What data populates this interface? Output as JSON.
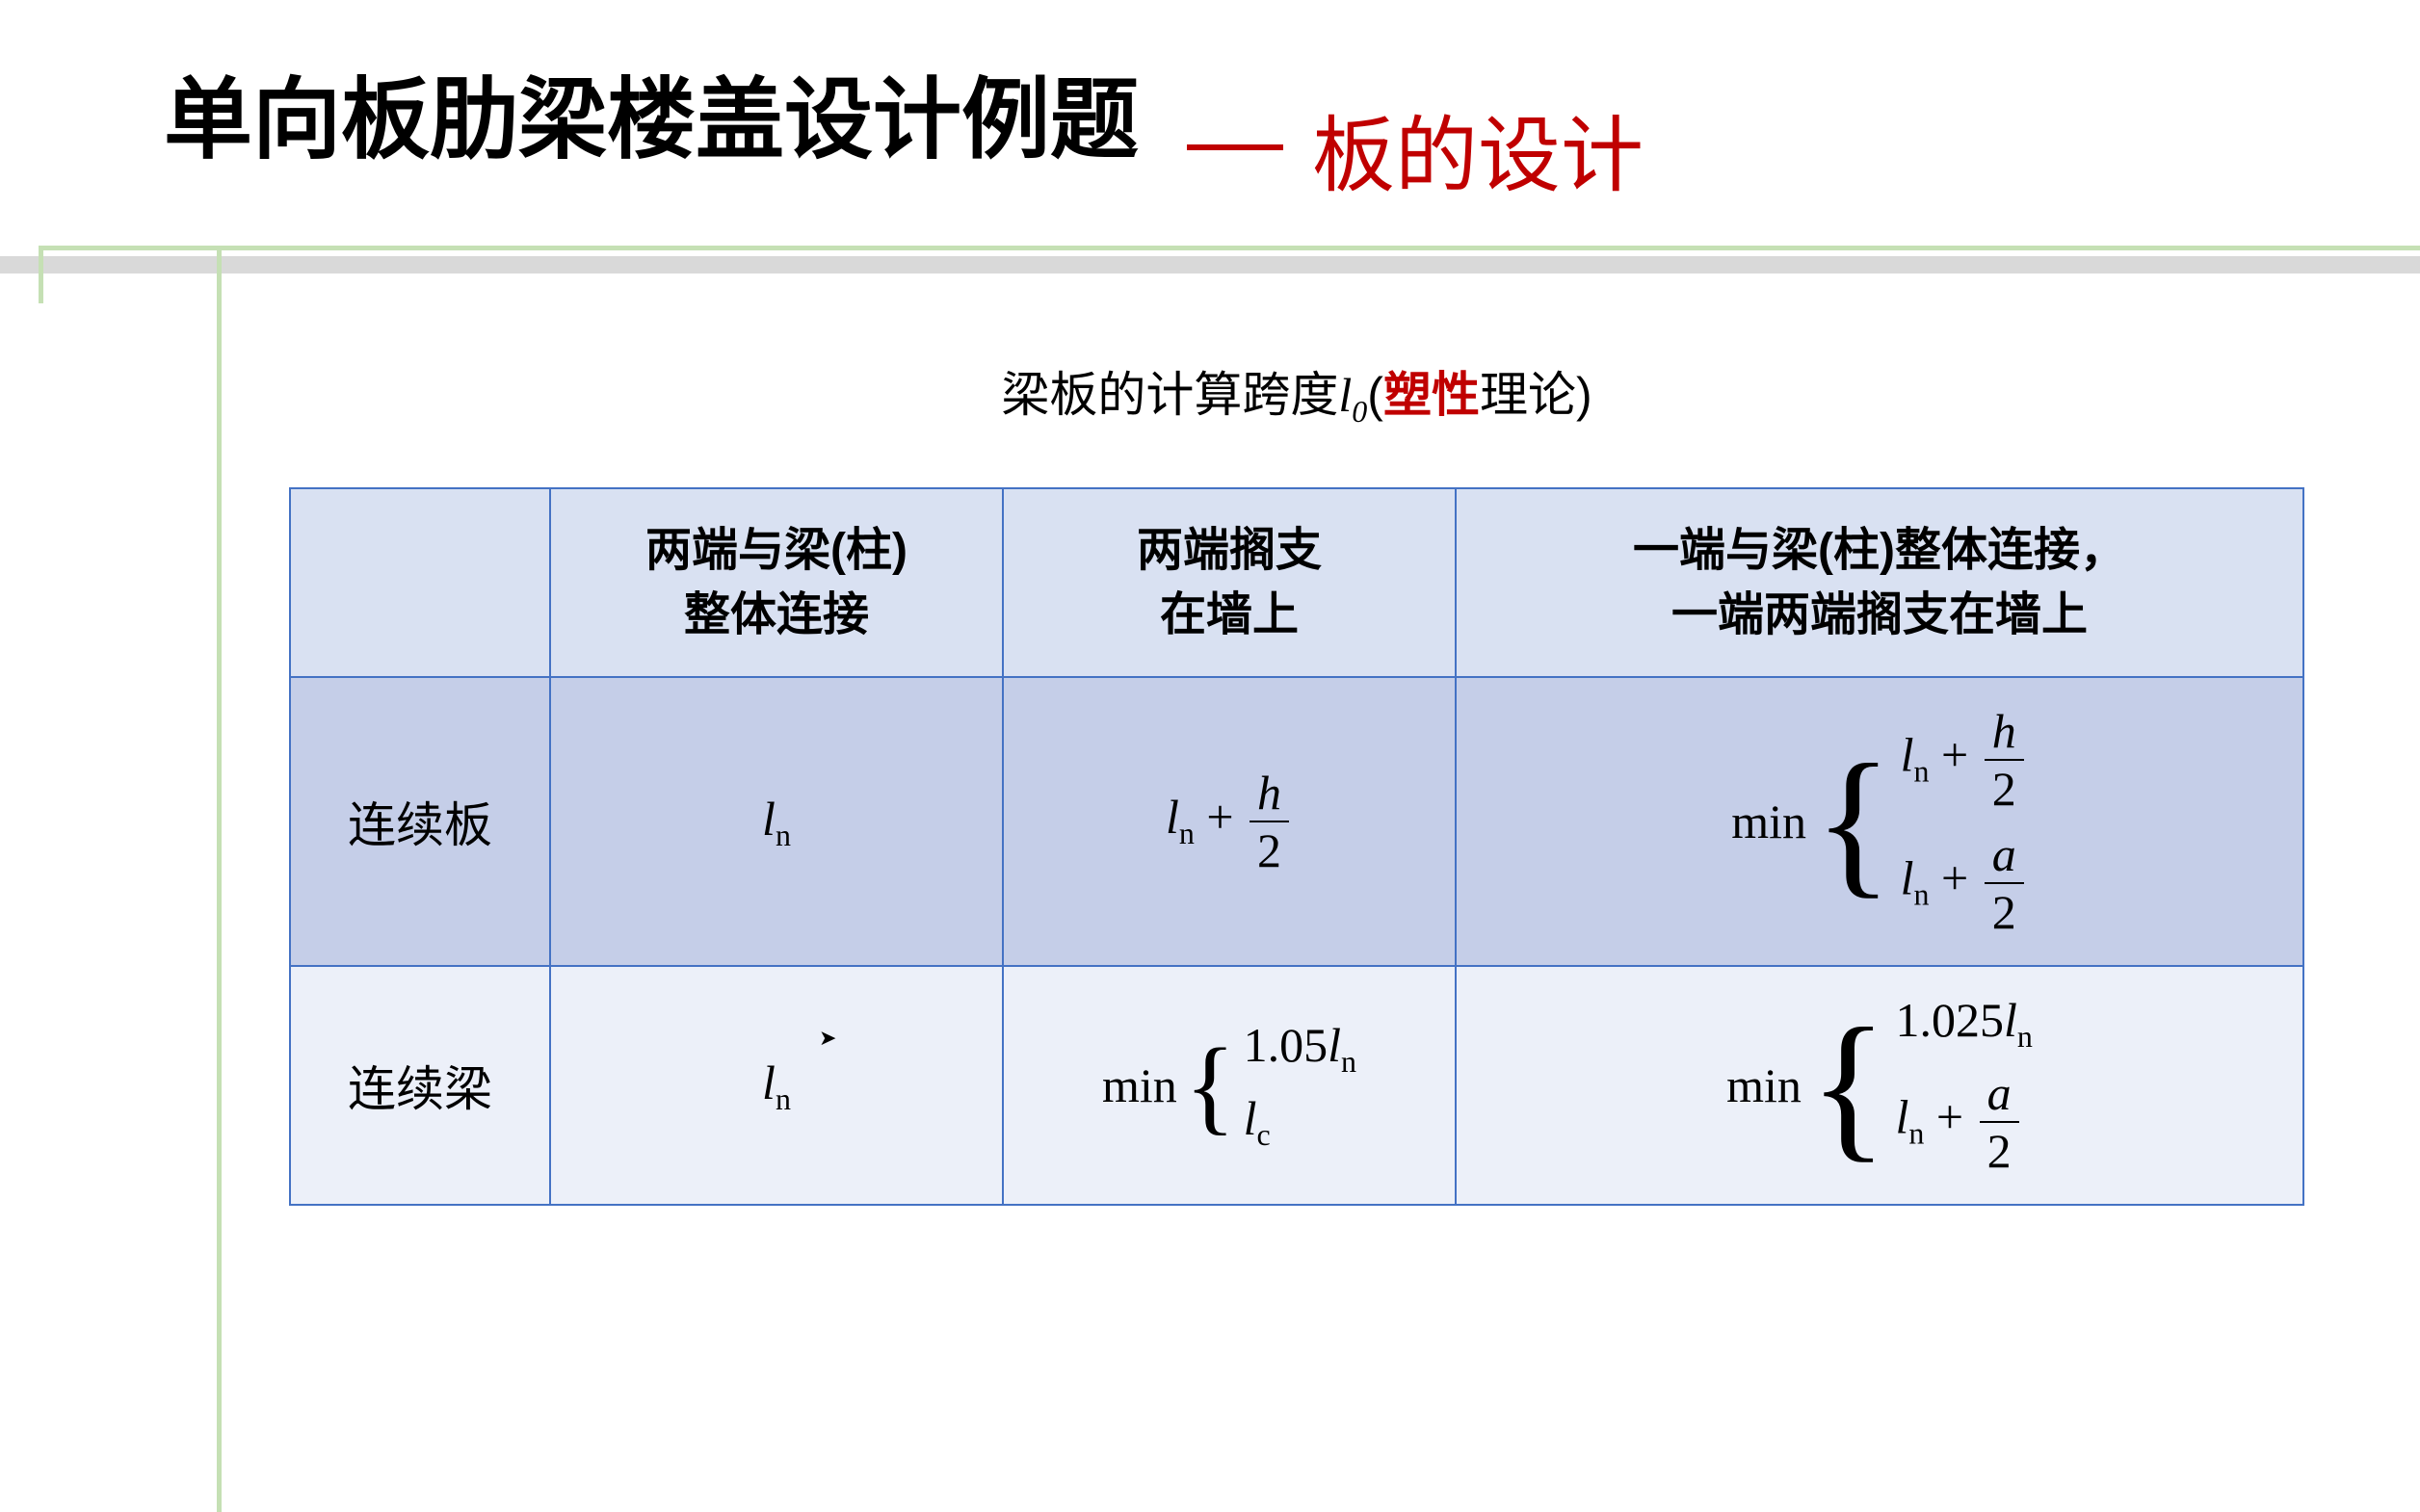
{
  "title": {
    "main": "单向板肋梁楼盖设计例题",
    "sub": "板的设计"
  },
  "caption": {
    "prefix": "梁板的计算跨度",
    "symbol_var": "l",
    "symbol_sub": "0",
    "paren_open": "(",
    "highlight": "塑性",
    "suffix": "理论)"
  },
  "table": {
    "headers": {
      "blank": "",
      "col1": "两端与梁(柱)\n整体连接",
      "col2": "两端搁支\n在墙上",
      "col3": "一端与梁(柱)整体连接，\n一端两端搁支在墙上"
    },
    "rows": [
      {
        "label": "连续板",
        "highlighted": true,
        "cells": {
          "c1": {
            "type": "ln"
          },
          "c2": {
            "type": "ln_plus_frac",
            "num": "h",
            "den": "2"
          },
          "c3": {
            "type": "min_two_frac",
            "case1_num": "h",
            "case1_den": "2",
            "case2_num": "a",
            "case2_den": "2"
          }
        }
      },
      {
        "label": "连续梁",
        "highlighted": false,
        "cells": {
          "c1": {
            "type": "ln"
          },
          "c2": {
            "type": "min_coef_lc",
            "coef": "1.05"
          },
          "c3": {
            "type": "min_coef_frac",
            "coef": "1.025",
            "num": "a",
            "den": "2"
          }
        }
      }
    ]
  },
  "colors": {
    "accent_red": "#c00000",
    "border_blue": "#4472c4",
    "header_bg": "#d9e1f2",
    "row_highlight": "#c5cee8",
    "row_alt": "#ecf0f9",
    "green_frame": "#c5e0b4",
    "divider_gray": "#d9d9d9"
  }
}
